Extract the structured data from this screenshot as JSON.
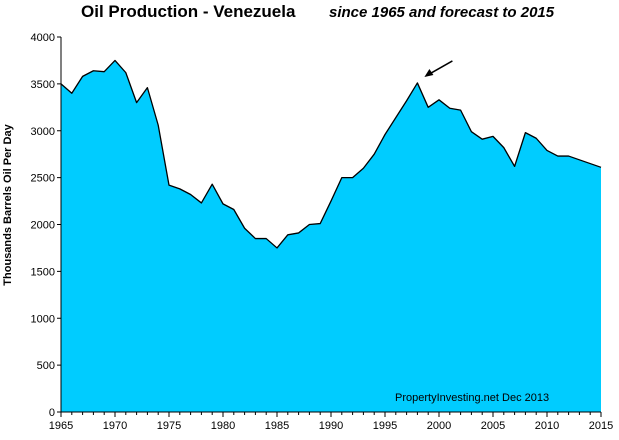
{
  "chart_data": {
    "type": "area",
    "title": "Oil Production - Venezuela",
    "subtitle": "since 1965 and forecast to 2015",
    "xlabel": "",
    "ylabel": "Thousands Barrels Oil Per Day",
    "xlim": [
      1965,
      2015
    ],
    "ylim": [
      0,
      4000
    ],
    "x_ticks": [
      1965,
      1970,
      1975,
      1980,
      1985,
      1990,
      1995,
      2000,
      2005,
      2010,
      2015
    ],
    "y_ticks": [
      0,
      500,
      1000,
      1500,
      2000,
      2500,
      3000,
      3500,
      4000
    ],
    "grid": false,
    "legend": "none",
    "annotation": "PropertyInvesting.net  Dec 2013",
    "arrow_target": {
      "x": 1998,
      "y": 3510
    },
    "fill_color": "#00ccff",
    "line_color": "#000000",
    "series": [
      {
        "x": [
          1965,
          1966,
          1967,
          1968,
          1969,
          1970,
          1971,
          1972,
          1973,
          1974,
          1975,
          1976,
          1977,
          1978,
          1979,
          1980,
          1981,
          1982,
          1983,
          1984,
          1985,
          1986,
          1987,
          1988,
          1989,
          1990,
          1991,
          1992,
          1993,
          1994,
          1995,
          1996,
          1997,
          1998,
          1999,
          2000,
          2001,
          2002,
          2003,
          2004,
          2005,
          2006,
          2007,
          2008,
          2009,
          2010,
          2011,
          2012,
          2013,
          2014,
          2015
        ],
        "values": [
          3500,
          3400,
          3580,
          3640,
          3630,
          3750,
          3620,
          3300,
          3460,
          3060,
          2420,
          2380,
          2320,
          2230,
          2430,
          2220,
          2160,
          1960,
          1850,
          1850,
          1750,
          1890,
          1910,
          2000,
          2010,
          2250,
          2500,
          2500,
          2600,
          2750,
          2960,
          3140,
          3320,
          3510,
          3250,
          3330,
          3240,
          3220,
          2990,
          2910,
          2940,
          2820,
          2620,
          2980,
          2920,
          2790,
          2730,
          2730,
          2690,
          2650,
          2610
        ]
      }
    ]
  }
}
